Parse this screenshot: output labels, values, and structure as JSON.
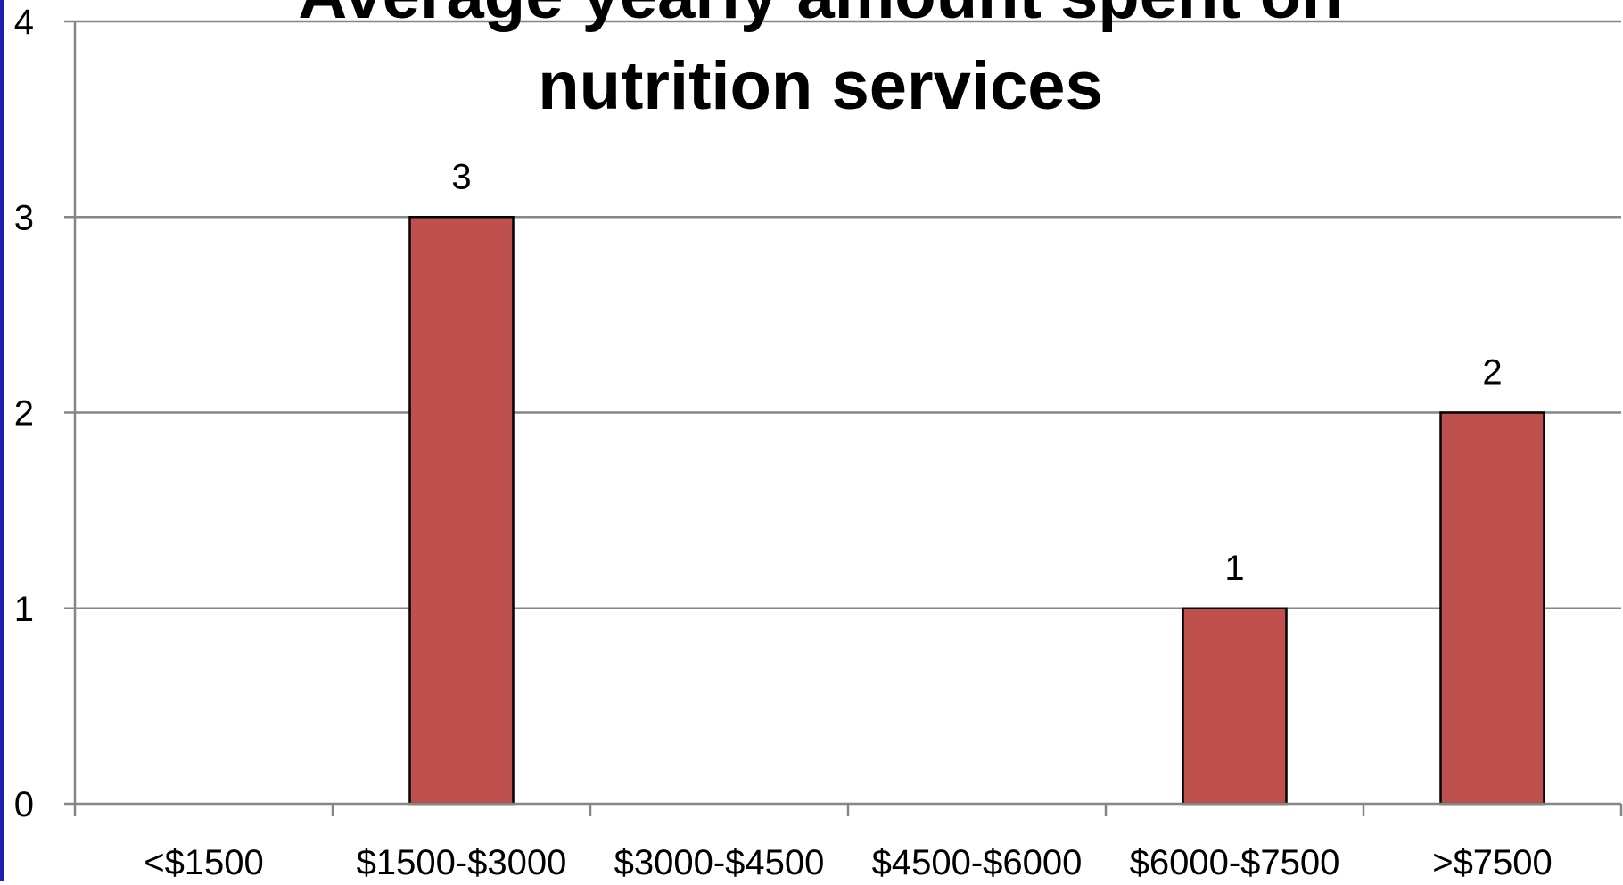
{
  "chart_data": {
    "type": "bar",
    "title_lines": [
      "Average yearly amount spent on",
      "nutrition services"
    ],
    "xlabel": "",
    "ylabel": "",
    "categories": [
      "<$1500",
      "$1500-$3000",
      "$3000-$4500",
      "$4500-$6000",
      "$6000-$7500",
      ">$7500"
    ],
    "values": [
      null,
      3,
      null,
      null,
      1,
      2
    ],
    "data_labels": [
      "",
      "3",
      "",
      "",
      "1",
      "2"
    ],
    "yticks": [
      "0",
      "1",
      "2",
      "3",
      "4"
    ],
    "ylim": [
      0,
      4
    ],
    "grid": true,
    "legend": "none",
    "colors": {
      "bar": "#c0504d",
      "bar_outline": "#000000",
      "gridline": "#868686",
      "axis": "#868686",
      "left_frame": "#1f1fb4"
    }
  }
}
